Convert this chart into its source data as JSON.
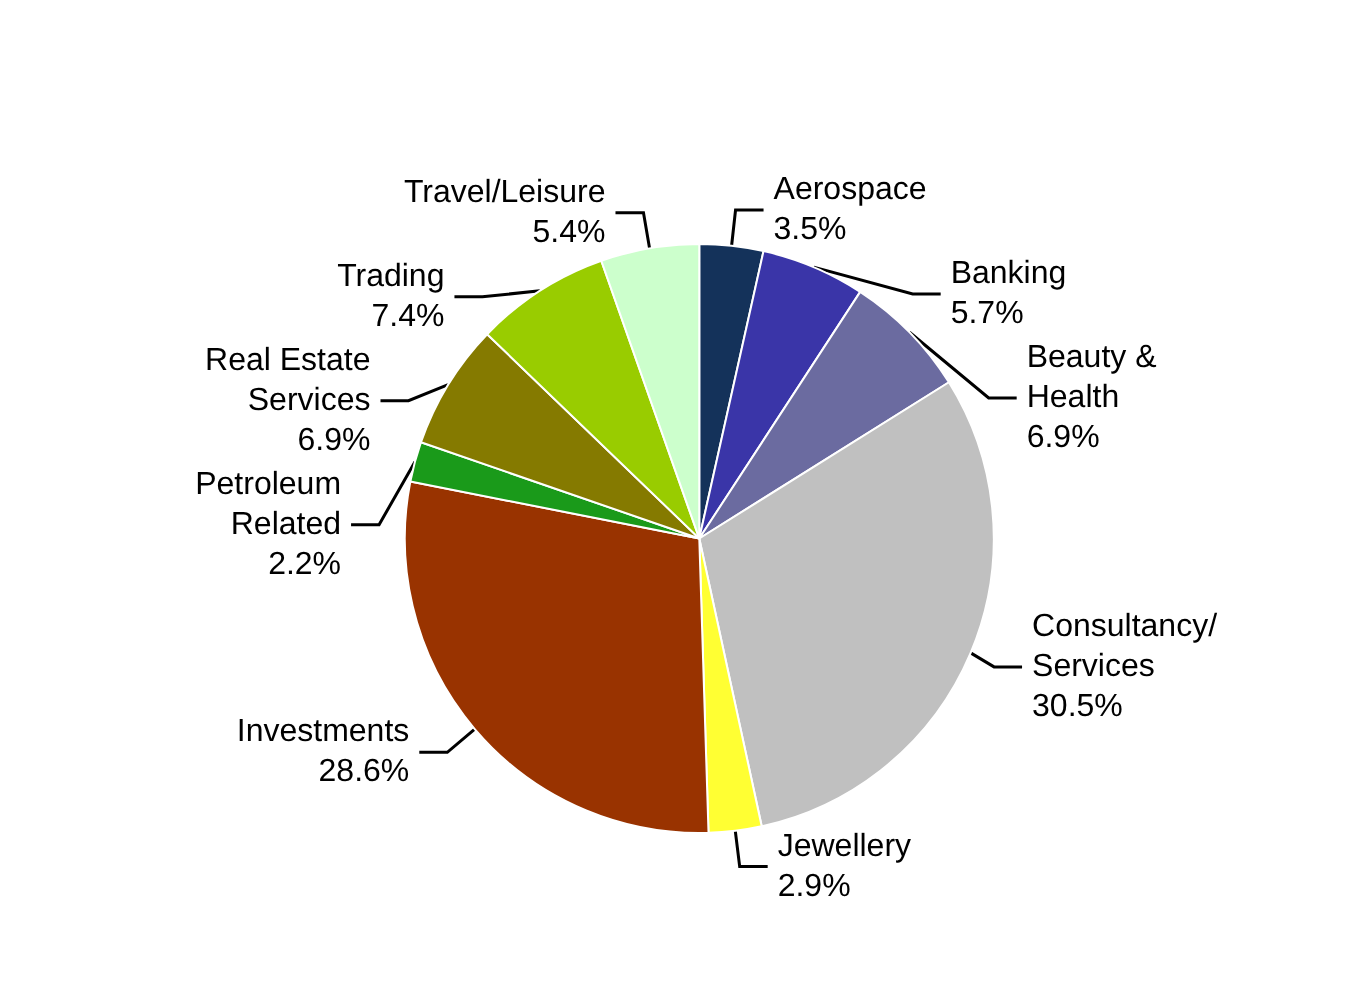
{
  "chart_data": {
    "type": "pie",
    "categories": [
      "Aerospace",
      "Banking",
      "Beauty &\nHealth",
      "Consultancy/\nServices",
      "Jewellery",
      "Investments",
      "Petroleum\nRelated",
      "Real Estate\nServices",
      "Trading",
      "Travel/Leisure"
    ],
    "values": [
      3.5,
      5.7,
      6.9,
      30.5,
      2.9,
      28.6,
      2.2,
      6.9,
      7.4,
      5.4
    ],
    "colors": [
      "#14325a",
      "#3a35a8",
      "#6b6ba0",
      "#c0c0c0",
      "#ffff33",
      "#993300",
      "#1a9a1a",
      "#857a00",
      "#99cc00",
      "#ccffcc"
    ],
    "value_labels": [
      "3.5%",
      "5.7%",
      "6.9%",
      "30.5%",
      "2.9%",
      "28.6%",
      "2.2%",
      "6.9%",
      "7.4%",
      "5.4%"
    ],
    "legend": false
  }
}
